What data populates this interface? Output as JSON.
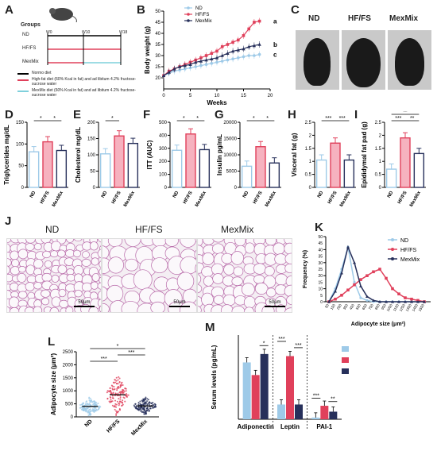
{
  "colors": {
    "nd": "#9ecae8",
    "hf": "#e0405b",
    "mex": "#27305b"
  },
  "panels": {
    "A": {
      "letter": "A",
      "groups_title": "Groups",
      "groups": [
        "ND",
        "HF/FS",
        "MexMix"
      ],
      "ticks": [
        "W0",
        "W10",
        "W18"
      ],
      "legend": [
        {
          "text": "Normo diet",
          "color": "#000000"
        },
        {
          "text": "High-fat diet (60% Kcal in fat) and ad libitum 4.2% fructose-sucrose water",
          "color": "#e0405b"
        },
        {
          "text": "MexMix diet (60% Kcal in fat) and ad libitum 4.2% fructose-sucrose water",
          "color": "#7fd0dc"
        }
      ]
    },
    "B": {
      "letter": "B"
    },
    "C": {
      "letter": "C",
      "labels": [
        "ND",
        "HF/FS",
        "MexMix"
      ]
    },
    "D": {
      "letter": "D"
    },
    "E": {
      "letter": "E"
    },
    "F": {
      "letter": "F"
    },
    "G": {
      "letter": "G"
    },
    "H": {
      "letter": "H"
    },
    "I": {
      "letter": "I"
    },
    "J": {
      "letter": "J",
      "labels": [
        "ND",
        "HF/FS",
        "MexMix"
      ],
      "scale": "50μm"
    },
    "K": {
      "letter": "K"
    },
    "L": {
      "letter": "L"
    },
    "M": {
      "letter": "M"
    }
  },
  "chart_data": [
    {
      "id": "B",
      "type": "line",
      "ylabel": "Body weight (g)",
      "xlabel": "Weeks",
      "xlim": [
        0,
        20
      ],
      "ylim": [
        15,
        50
      ],
      "xticks": [
        0,
        5,
        10,
        15,
        20
      ],
      "yticks": [
        20,
        25,
        30,
        35,
        40,
        45,
        50
      ],
      "series_labels": [
        "ND",
        "HF/FS",
        "MexMix"
      ],
      "x": [
        0,
        1,
        2,
        3,
        4,
        5,
        6,
        7,
        8,
        9,
        10,
        11,
        12,
        13,
        14,
        15,
        16,
        17,
        18
      ],
      "series": [
        {
          "name": "ND",
          "values": [
            21,
            22,
            23,
            23.5,
            24,
            24.5,
            25,
            25.5,
            26,
            26.5,
            27,
            27.5,
            28,
            28.5,
            29,
            29.5,
            30,
            30,
            30.5
          ]
        },
        {
          "name": "HF/FS",
          "values": [
            21,
            23,
            24,
            25,
            26,
            27,
            28,
            29,
            30,
            31,
            32,
            34,
            35,
            36,
            37,
            39,
            42,
            45,
            45.5
          ]
        },
        {
          "name": "MexMix",
          "values": [
            21,
            22.5,
            24,
            25,
            25.5,
            26,
            27,
            27.5,
            28,
            28.5,
            29,
            30,
            31,
            32,
            32.5,
            33,
            34,
            34.5,
            35
          ]
        }
      ],
      "end_labels": [
        "a",
        "b",
        "c"
      ]
    },
    {
      "id": "D",
      "type": "bar",
      "ylabel": "Triglycerides mg/dL",
      "categories": [
        "ND",
        "HF/FS",
        "MexMix"
      ],
      "values": [
        82,
        105,
        85
      ],
      "ylim": [
        0,
        150
      ],
      "yticks": [
        0,
        50,
        100,
        150
      ],
      "sig": [
        "*",
        "*"
      ]
    },
    {
      "id": "E",
      "type": "bar",
      "ylabel": "Cholesterol mg/dL",
      "categories": [
        "ND",
        "HF/FS",
        "MexMix"
      ],
      "values": [
        103,
        158,
        135
      ],
      "ylim": [
        0,
        200
      ],
      "yticks": [
        0,
        50,
        100,
        150,
        200
      ],
      "sig": [
        "*"
      ]
    },
    {
      "id": "F",
      "type": "bar",
      "ylabel": "ITT (AUC)",
      "categories": [
        "ND",
        "HF/FS",
        "MexMix"
      ],
      "values": [
        285,
        410,
        290
      ],
      "ylim": [
        0,
        500
      ],
      "yticks": [
        0,
        100,
        200,
        300,
        400,
        500
      ],
      "sig": [
        "*",
        "*"
      ]
    },
    {
      "id": "G",
      "type": "bar",
      "ylabel": "Insulin pg/mL",
      "categories": [
        "ND",
        "HF/FS",
        "MexMix"
      ],
      "values": [
        6500,
        12500,
        7500
      ],
      "ylim": [
        0,
        20000
      ],
      "yticks": [
        0,
        5000,
        10000,
        15000,
        20000
      ],
      "sig": [
        "*",
        "*"
      ]
    },
    {
      "id": "H",
      "type": "bar",
      "ylabel": "Visceral fat (g)",
      "categories": [
        "ND",
        "HF/FS",
        "MexMix"
      ],
      "values": [
        1.05,
        1.7,
        1.05
      ],
      "ylim": [
        0,
        2.5
      ],
      "yticks": [
        0,
        0.5,
        1.0,
        1.5,
        2.0,
        2.5
      ],
      "sig": [
        "***",
        "***"
      ]
    },
    {
      "id": "I",
      "type": "bar",
      "ylabel": "Epididymal fat pad (g)",
      "categories": [
        "ND",
        "HF/FS",
        "MexMix"
      ],
      "values": [
        0.7,
        1.9,
        1.3
      ],
      "ylim": [
        0,
        2.5
      ],
      "yticks": [
        0,
        0.5,
        1.0,
        1.5,
        2.0,
        2.5
      ],
      "sig": [
        "***",
        "**",
        "**"
      ]
    },
    {
      "id": "K",
      "type": "line",
      "ylabel": "Frequency (%)",
      "xlabel": "Adipocyte size (μm²)",
      "ylim": [
        0,
        50
      ],
      "yticks": [
        0,
        5,
        10,
        15,
        20,
        25,
        30,
        35,
        40,
        45,
        50
      ],
      "x": [
        50,
        150,
        250,
        350,
        450,
        550,
        650,
        750,
        850,
        950,
        1050,
        1150,
        1250,
        1350,
        1450,
        1550
      ],
      "series": [
        {
          "name": "ND",
          "values": [
            0,
            10,
            25,
            42,
            15,
            3,
            1,
            0,
            0,
            0,
            0,
            0,
            0,
            0,
            0,
            0
          ]
        },
        {
          "name": "HF/FS",
          "values": [
            0,
            2,
            5,
            9,
            13,
            17,
            20,
            23,
            25,
            18,
            10,
            6,
            3,
            2,
            1,
            0
          ]
        },
        {
          "name": "MexMix",
          "values": [
            0,
            8,
            22,
            42,
            30,
            12,
            4,
            1,
            0,
            0,
            0,
            0,
            0,
            0,
            0,
            0
          ]
        }
      ]
    },
    {
      "id": "L",
      "type": "scatter",
      "ylabel": "Adipocyte size (μm²)",
      "categories": [
        "ND",
        "HF/FS",
        "MexMix"
      ],
      "medians": [
        400,
        850,
        420
      ],
      "ylim": [
        0,
        2500
      ],
      "yticks": [
        0,
        500,
        1000,
        1500,
        2000,
        2500
      ],
      "sig": [
        "***",
        "*",
        "***"
      ]
    },
    {
      "id": "M",
      "type": "bar",
      "ylabel": "Serum levels (pg/mL)",
      "groups": [
        "Adiponectin",
        "Leptin",
        "PAI-1"
      ],
      "series": [
        {
          "name": "ND",
          "values": [
            13.5,
            3.5,
            0.4
          ]
        },
        {
          "name": "HF/FS",
          "values": [
            10.5,
            15,
            3.2
          ]
        },
        {
          "name": "MexMix",
          "values": [
            15.5,
            3.5,
            1.8
          ]
        }
      ],
      "ylim": [
        0,
        20
      ],
      "sig": [
        "*",
        "***",
        "***",
        "***",
        "**"
      ]
    }
  ]
}
